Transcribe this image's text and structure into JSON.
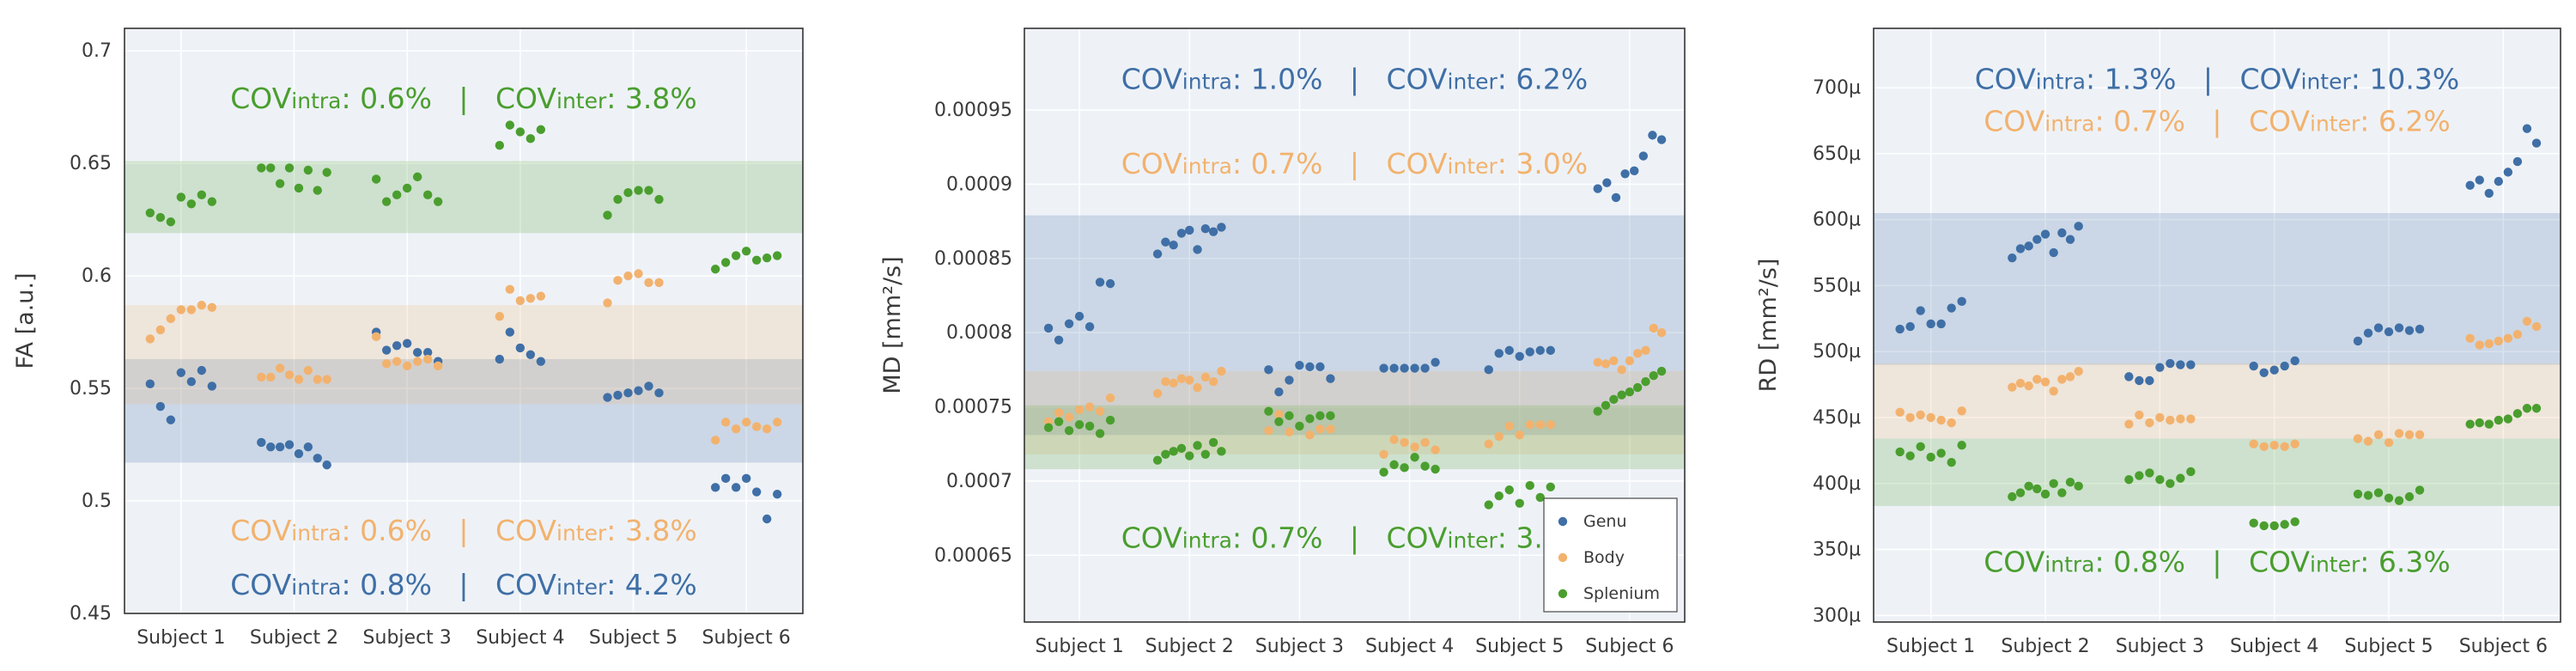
{
  "colors": {
    "genu": "#3f6fa6",
    "body": "#f2b26e",
    "splenium": "#4a9e2e",
    "plot_bg": "#eef2f7",
    "grid": "#ffffff"
  },
  "chart_data": [
    {
      "type": "scatter",
      "ylabel": "FA [a.u.]",
      "ylim": [
        0.45,
        0.71
      ],
      "yticks": [
        0.45,
        0.5,
        0.55,
        0.6,
        0.65,
        0.7
      ],
      "ytick_labels": [
        "0.45",
        "0.5",
        "0.55",
        "0.6",
        "0.65",
        "0.7"
      ],
      "categories": [
        "Subject 1",
        "Subject 2",
        "Subject 3",
        "Subject 4",
        "Subject 5",
        "Subject 6"
      ],
      "bands": [
        {
          "series": "Genu",
          "range": [
            0.517,
            0.563
          ]
        },
        {
          "series": "Body",
          "range": [
            0.543,
            0.587
          ]
        },
        {
          "series": "Splenium",
          "range": [
            0.619,
            0.651
          ]
        }
      ],
      "series": [
        {
          "name": "Genu",
          "values": [
            [
              0.552,
              0.542,
              0.536,
              0.557,
              0.553,
              0.558,
              0.551
            ],
            [
              0.526,
              0.524,
              0.524,
              0.525,
              0.521,
              0.524,
              0.519,
              0.516
            ],
            [
              0.575,
              0.567,
              0.569,
              0.57,
              0.566,
              0.566,
              0.562
            ],
            [
              0.563,
              0.575,
              0.568,
              0.565,
              0.562
            ],
            [
              0.546,
              0.547,
              0.548,
              0.549,
              0.551,
              0.548
            ],
            [
              0.506,
              0.51,
              0.506,
              0.51,
              0.504,
              0.492,
              0.503
            ]
          ]
        },
        {
          "name": "Body",
          "values": [
            [
              0.572,
              0.576,
              0.581,
              0.585,
              0.585,
              0.587,
              0.586
            ],
            [
              0.555,
              0.555,
              0.559,
              0.556,
              0.554,
              0.558,
              0.554,
              0.554
            ],
            [
              0.573,
              0.561,
              0.562,
              0.56,
              0.562,
              0.563,
              0.56
            ],
            [
              0.582,
              0.594,
              0.589,
              0.59,
              0.591
            ],
            [
              0.588,
              0.598,
              0.6,
              0.601,
              0.597,
              0.597
            ],
            [
              0.527,
              0.535,
              0.532,
              0.535,
              0.533,
              0.532,
              0.535
            ]
          ]
        },
        {
          "name": "Splenium",
          "values": [
            [
              0.628,
              0.626,
              0.624,
              0.635,
              0.632,
              0.636,
              0.633
            ],
            [
              0.648,
              0.648,
              0.641,
              0.648,
              0.639,
              0.647,
              0.638,
              0.646
            ],
            [
              0.643,
              0.633,
              0.636,
              0.639,
              0.644,
              0.636,
              0.633
            ],
            [
              0.658,
              0.667,
              0.664,
              0.661,
              0.665
            ],
            [
              0.627,
              0.634,
              0.637,
              0.638,
              0.638,
              0.634
            ],
            [
              0.603,
              0.606,
              0.609,
              0.611,
              0.607,
              0.608,
              0.609
            ]
          ]
        }
      ],
      "annotations": [
        {
          "series": "Splenium",
          "y": 0.679,
          "intra": "0.6%",
          "inter": "3.8%"
        },
        {
          "series": "Body",
          "y": 0.487,
          "intra": "0.6%",
          "inter": "3.8%"
        },
        {
          "series": "Genu",
          "y": 0.463,
          "intra": "0.8%",
          "inter": "4.2%"
        }
      ]
    },
    {
      "type": "scatter",
      "ylabel": "MD [mm²/s]",
      "ylim": [
        0.000605,
        0.001005
      ],
      "yticks": [
        0.00065,
        0.0007,
        0.00075,
        0.0008,
        0.00085,
        0.0009,
        0.00095
      ],
      "ytick_labels": [
        "0.00065",
        "0.0007",
        "0.00075",
        "0.0008",
        "0.00085",
        "0.0009",
        "0.00095"
      ],
      "categories": [
        "Subject 1",
        "Subject 2",
        "Subject 3",
        "Subject 4",
        "Subject 5",
        "Subject 6"
      ],
      "bands": [
        {
          "series": "Genu",
          "range": [
            0.000731,
            0.000879
          ]
        },
        {
          "series": "Body",
          "range": [
            0.000718,
            0.000774
          ]
        },
        {
          "series": "Splenium",
          "range": [
            0.000708,
            0.000751
          ]
        }
      ],
      "series": [
        {
          "name": "Genu",
          "values": [
            [
              0.000803,
              0.000795,
              0.000806,
              0.000811,
              0.000804,
              0.000834,
              0.000833
            ],
            [
              0.000853,
              0.000861,
              0.000859,
              0.000867,
              0.000869,
              0.000856,
              0.00087,
              0.000868,
              0.000871
            ],
            [
              0.000775,
              0.00076,
              0.000768,
              0.000778,
              0.000777,
              0.000777,
              0.000769
            ],
            [
              0.000776,
              0.000776,
              0.000776,
              0.000776,
              0.000776,
              0.00078
            ],
            [
              0.000775,
              0.000786,
              0.000788,
              0.000784,
              0.000787,
              0.000788,
              0.000788
            ],
            [
              0.000897,
              0.000901,
              0.000891,
              0.000907,
              0.000909,
              0.000919,
              0.000933,
              0.00093
            ]
          ]
        },
        {
          "name": "Body",
          "values": [
            [
              0.00074,
              0.000746,
              0.000743,
              0.000748,
              0.00075,
              0.000747,
              0.000756
            ],
            [
              0.000759,
              0.000767,
              0.000766,
              0.000769,
              0.000768,
              0.000763,
              0.00077,
              0.000767,
              0.000774
            ],
            [
              0.000734,
              0.000745,
              0.000733,
              0.000737,
              0.000731,
              0.000735,
              0.000735
            ],
            [
              0.000718,
              0.000728,
              0.000726,
              0.000723,
              0.000726,
              0.000721
            ],
            [
              0.000725,
              0.00073,
              0.000737,
              0.000731,
              0.000738,
              0.000738,
              0.000738
            ],
            [
              0.00078,
              0.000779,
              0.000781,
              0.000775,
              0.000781,
              0.000786,
              0.000788,
              0.000803,
              0.0008
            ]
          ]
        },
        {
          "name": "Splenium",
          "values": [
            [
              0.000736,
              0.00074,
              0.000734,
              0.000738,
              0.000737,
              0.000732,
              0.000741
            ],
            [
              0.000714,
              0.000718,
              0.00072,
              0.000722,
              0.000717,
              0.000724,
              0.000718,
              0.000726,
              0.00072
            ],
            [
              0.000747,
              0.00074,
              0.000744,
              0.000737,
              0.000742,
              0.000744,
              0.000744
            ],
            [
              0.000706,
              0.000711,
              0.000709,
              0.000716,
              0.00071,
              0.000708
            ],
            [
              0.000684,
              0.00069,
              0.000694,
              0.000685,
              0.000697,
              0.000689,
              0.000696
            ],
            [
              0.000747,
              0.000751,
              0.000755,
              0.000758,
              0.00076,
              0.000763,
              0.000767,
              0.000771,
              0.000774
            ]
          ]
        }
      ],
      "annotations": [
        {
          "series": "Genu",
          "y": 0.000971,
          "intra": "1.0%",
          "inter": "6.2%"
        },
        {
          "series": "Body",
          "y": 0.000914,
          "intra": "0.7%",
          "inter": "3.0%"
        },
        {
          "series": "Splenium",
          "y": 0.000662,
          "intra": "0.7%",
          "inter": "3.1%"
        }
      ],
      "legend": {
        "position": "bottom-right",
        "entries": [
          "Genu",
          "Body",
          "Splenium"
        ]
      }
    },
    {
      "type": "scatter",
      "ylabel": "RD [mm²/s]",
      "ylim": [
        0.000295,
        0.000745
      ],
      "yticks": [
        0.0003,
        0.00035,
        0.0004,
        0.00045,
        0.0005,
        0.00055,
        0.0006,
        0.00065,
        0.0007
      ],
      "ytick_labels": [
        "300µ",
        "350µ",
        "400µ",
        "450µ",
        "500µ",
        "550µ",
        "600µ",
        "650µ",
        "700µ"
      ],
      "categories": [
        "Subject 1",
        "Subject 2",
        "Subject 3",
        "Subject 4",
        "Subject 5",
        "Subject 6"
      ],
      "bands": [
        {
          "series": "Genu",
          "range": [
            0.00049,
            0.000605
          ]
        },
        {
          "series": "Body",
          "range": [
            0.000434,
            0.000491
          ]
        },
        {
          "series": "Splenium",
          "range": [
            0.000383,
            0.000434
          ]
        }
      ],
      "series": [
        {
          "name": "Genu",
          "values": [
            [
              0.000517,
              0.000519,
              0.000531,
              0.000521,
              0.000521,
              0.000533,
              0.000538
            ],
            [
              0.000571,
              0.000578,
              0.00058,
              0.000585,
              0.000589,
              0.000575,
              0.00059,
              0.000585,
              0.000595
            ],
            [
              0.000481,
              0.000478,
              0.000478,
              0.000488,
              0.000491,
              0.00049,
              0.00049
            ],
            [
              0.000489,
              0.000484,
              0.000486,
              0.000489,
              0.000493
            ],
            [
              0.000508,
              0.000514,
              0.000518,
              0.000515,
              0.000518,
              0.000516,
              0.000517
            ],
            [
              0.000626,
              0.00063,
              0.00062,
              0.000629,
              0.000636,
              0.000644,
              0.000669,
              0.000658
            ]
          ]
        },
        {
          "name": "Body",
          "values": [
            [
              0.000454,
              0.00045,
              0.000452,
              0.00045,
              0.000448,
              0.000446,
              0.000455
            ],
            [
              0.000473,
              0.000476,
              0.000474,
              0.000479,
              0.000477,
              0.00047,
              0.000479,
              0.000481,
              0.000485
            ],
            [
              0.000445,
              0.000452,
              0.000446,
              0.00045,
              0.000448,
              0.000449,
              0.000449
            ],
            [
              0.00043,
              0.000428,
              0.000429,
              0.000428,
              0.00043
            ],
            [
              0.000434,
              0.000432,
              0.000437,
              0.000431,
              0.000438,
              0.000437,
              0.000437
            ],
            [
              0.00051,
              0.000505,
              0.000506,
              0.000508,
              0.00051,
              0.000513,
              0.000523,
              0.000519
            ]
          ]
        },
        {
          "name": "Splenium",
          "values": [
            [
              0.000424,
              0.000421,
              0.000428,
              0.00042,
              0.000423,
              0.000416,
              0.000429
            ],
            [
              0.00039,
              0.000393,
              0.000398,
              0.000396,
              0.000392,
              0.0004,
              0.000393,
              0.000401,
              0.000398
            ],
            [
              0.000403,
              0.000406,
              0.000408,
              0.000403,
              0.0004,
              0.000404,
              0.000409
            ],
            [
              0.00037,
              0.000368,
              0.000368,
              0.000369,
              0.000371
            ],
            [
              0.000392,
              0.000391,
              0.000393,
              0.000389,
              0.000387,
              0.00039,
              0.000395
            ],
            [
              0.000445,
              0.000446,
              0.000445,
              0.000448,
              0.000449,
              0.000453,
              0.000457,
              0.000457
            ]
          ]
        }
      ],
      "annotations": [
        {
          "series": "Genu",
          "y": 0.000707,
          "intra": "1.3%",
          "inter": "10.3%"
        },
        {
          "series": "Body",
          "y": 0.000675,
          "intra": "0.7%",
          "inter": "6.2%"
        },
        {
          "series": "Splenium",
          "y": 0.000341,
          "intra": "0.8%",
          "inter": "6.3%"
        }
      ]
    }
  ]
}
